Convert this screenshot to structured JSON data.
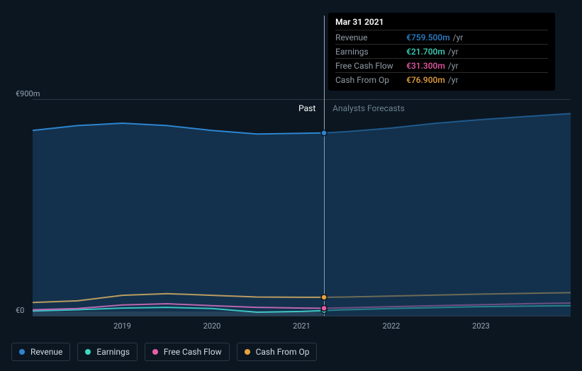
{
  "chart": {
    "type": "area-line",
    "background_color": "#0b1621",
    "grid_color": "#2a3944",
    "text_color": "#98a6b3",
    "currency_symbol": "€",
    "y_axis": {
      "min": 0,
      "max": 900,
      "ticks": [
        {
          "value": 0,
          "label": "€0"
        },
        {
          "value": 900,
          "label": "€900m"
        }
      ]
    },
    "x_axis": {
      "min": 2018.0,
      "max": 2024.0,
      "ticks": [
        {
          "value": 2019,
          "label": "2019"
        },
        {
          "value": 2020,
          "label": "2020"
        },
        {
          "value": 2021,
          "label": "2021"
        },
        {
          "value": 2022,
          "label": "2022"
        },
        {
          "value": 2023,
          "label": "2023"
        }
      ]
    },
    "split": {
      "value": 2021.25,
      "past_label": "Past",
      "future_label": "Analysts Forecasts"
    },
    "hover_x": 2021.25,
    "series": [
      {
        "id": "revenue",
        "label": "Revenue",
        "color": "#2d85d0",
        "fill": true,
        "fill_opacity": 0.25,
        "line_width": 2,
        "data": [
          [
            2018.0,
            770
          ],
          [
            2018.5,
            790
          ],
          [
            2019.0,
            800
          ],
          [
            2019.5,
            790
          ],
          [
            2020.0,
            770
          ],
          [
            2020.5,
            755
          ],
          [
            2021.0,
            758
          ],
          [
            2021.25,
            759.5
          ],
          [
            2021.5,
            765
          ],
          [
            2022.0,
            780
          ],
          [
            2022.5,
            800
          ],
          [
            2023.0,
            815
          ],
          [
            2023.5,
            828
          ],
          [
            2024.0,
            840
          ]
        ]
      },
      {
        "id": "cash_from_op",
        "label": "Cash From Op",
        "color": "#e8a33d",
        "fill": false,
        "line_width": 2,
        "data": [
          [
            2018.0,
            55
          ],
          [
            2018.5,
            62
          ],
          [
            2019.0,
            85
          ],
          [
            2019.5,
            92
          ],
          [
            2020.0,
            85
          ],
          [
            2020.5,
            78
          ],
          [
            2021.0,
            77
          ],
          [
            2021.25,
            76.9
          ],
          [
            2021.5,
            78
          ],
          [
            2022.0,
            82
          ],
          [
            2022.5,
            86
          ],
          [
            2023.0,
            90
          ],
          [
            2023.5,
            93
          ],
          [
            2024.0,
            96
          ]
        ]
      },
      {
        "id": "free_cash_flow",
        "label": "Free Cash Flow",
        "color": "#e85ca8",
        "fill": false,
        "line_width": 2,
        "data": [
          [
            2018.0,
            25
          ],
          [
            2018.5,
            30
          ],
          [
            2019.0,
            45
          ],
          [
            2019.5,
            50
          ],
          [
            2020.0,
            42
          ],
          [
            2020.5,
            35
          ],
          [
            2021.0,
            32
          ],
          [
            2021.25,
            31.3
          ],
          [
            2021.5,
            33
          ],
          [
            2022.0,
            38
          ],
          [
            2022.5,
            42
          ],
          [
            2023.0,
            46
          ],
          [
            2023.5,
            50
          ],
          [
            2024.0,
            53
          ]
        ]
      },
      {
        "id": "earnings",
        "label": "Earnings",
        "color": "#3dd8c0",
        "fill": false,
        "line_width": 2,
        "data": [
          [
            2018.0,
            20
          ],
          [
            2018.5,
            25
          ],
          [
            2019.0,
            32
          ],
          [
            2019.5,
            35
          ],
          [
            2020.0,
            30
          ],
          [
            2020.5,
            15
          ],
          [
            2021.0,
            18
          ],
          [
            2021.25,
            21.7
          ],
          [
            2021.5,
            25
          ],
          [
            2022.0,
            30
          ],
          [
            2022.5,
            34
          ],
          [
            2023.0,
            38
          ],
          [
            2023.5,
            40
          ],
          [
            2024.0,
            42
          ]
        ]
      }
    ]
  },
  "tooltip": {
    "title": "Mar 31 2021",
    "unit": "/yr",
    "rows": [
      {
        "metric": "Revenue",
        "value": "€759.500m",
        "color": "#2d85d0"
      },
      {
        "metric": "Earnings",
        "value": "€21.700m",
        "color": "#3dd8c0"
      },
      {
        "metric": "Free Cash Flow",
        "value": "€31.300m",
        "color": "#e85ca8"
      },
      {
        "metric": "Cash From Op",
        "value": "€76.900m",
        "color": "#e8a33d"
      }
    ]
  },
  "legend": {
    "items": [
      {
        "id": "revenue",
        "label": "Revenue",
        "color": "#2d85d0"
      },
      {
        "id": "earnings",
        "label": "Earnings",
        "color": "#3dd8c0"
      },
      {
        "id": "free_cash_flow",
        "label": "Free Cash Flow",
        "color": "#e85ca8"
      },
      {
        "id": "cash_from_op",
        "label": "Cash From Op",
        "color": "#e8a33d"
      }
    ]
  }
}
